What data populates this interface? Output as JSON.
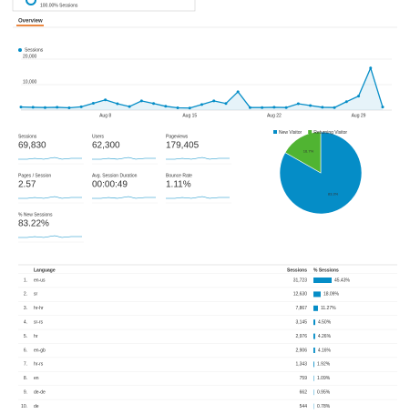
{
  "header": {
    "segment_label": "100.00% Sessions",
    "tab": "Overview"
  },
  "chart_data": [
    {
      "type": "line",
      "series": [
        {
          "name": "Sessions",
          "color": "#058dc7",
          "values": [
            1200,
            1100,
            1000,
            1100,
            900,
            1300,
            2700,
            4000,
            2500,
            1400,
            3600,
            2600,
            1500,
            900,
            800,
            2200,
            3600,
            2600,
            7200,
            1000,
            1000,
            1100,
            1000,
            2500,
            1800,
            1100,
            1000,
            3300,
            5500,
            16500,
            1200
          ]
        }
      ],
      "categories": [
        null,
        null,
        null,
        null,
        null,
        null,
        null,
        "Aug 8",
        null,
        null,
        null,
        null,
        null,
        null,
        "Aug 15",
        null,
        null,
        null,
        null,
        null,
        null,
        "Aug 22",
        null,
        null,
        null,
        null,
        null,
        null,
        "Aug 29",
        null,
        null
      ],
      "ylim": [
        0,
        22500
      ],
      "yticks": [
        {
          "value": 10000,
          "label": "10,000"
        },
        {
          "value": 20000,
          "label": "20,000"
        }
      ],
      "grid": true
    },
    {
      "type": "pie",
      "categories": [
        "New Visitor",
        "Returning Visitor"
      ],
      "values": [
        83.3,
        16.7
      ],
      "value_labels": [
        "83.3%",
        "16.7%"
      ],
      "colors": [
        "#058dc7",
        "#50b432"
      ]
    }
  ],
  "metrics": [
    {
      "label": "Sessions",
      "value": "69,830"
    },
    {
      "label": "Users",
      "value": "62,300"
    },
    {
      "label": "Pageviews",
      "value": "179,405"
    },
    {
      "label": "Pages / Session",
      "value": "2.57"
    },
    {
      "label": "Avg. Session Duration",
      "value": "00:00:49"
    },
    {
      "label": "Bounce Rate",
      "value": "1.11%"
    },
    {
      "label": "% New Sessions",
      "value": "83.22%"
    }
  ],
  "table": {
    "columns": [
      "Language",
      "Sessions",
      "% Sessions"
    ],
    "rows": [
      {
        "rank": "1.",
        "language": "en-us",
        "sessions": "31,723",
        "pct": 45.43,
        "pct_label": "45.43%"
      },
      {
        "rank": "2.",
        "language": "sr",
        "sessions": "12,630",
        "pct": 18.09,
        "pct_label": "18.09%"
      },
      {
        "rank": "3.",
        "language": "hr-hr",
        "sessions": "7,867",
        "pct": 11.27,
        "pct_label": "11.27%"
      },
      {
        "rank": "4.",
        "language": "sr-rs",
        "sessions": "3,145",
        "pct": 4.5,
        "pct_label": "4.50%"
      },
      {
        "rank": "5.",
        "language": "hr",
        "sessions": "2,976",
        "pct": 4.26,
        "pct_label": "4.26%"
      },
      {
        "rank": "6.",
        "language": "en-gb",
        "sessions": "2,906",
        "pct": 4.16,
        "pct_label": "4.16%"
      },
      {
        "rank": "7.",
        "language": "hr-rs",
        "sessions": "1,343",
        "pct": 1.92,
        "pct_label": "1.92%"
      },
      {
        "rank": "8.",
        "language": "en",
        "sessions": "759",
        "pct": 1.09,
        "pct_label": "1.09%"
      },
      {
        "rank": "9.",
        "language": "de-de",
        "sessions": "662",
        "pct": 0.95,
        "pct_label": "0.95%"
      },
      {
        "rank": "10.",
        "language": "de",
        "sessions": "544",
        "pct": 0.78,
        "pct_label": "0.78%"
      }
    ]
  }
}
